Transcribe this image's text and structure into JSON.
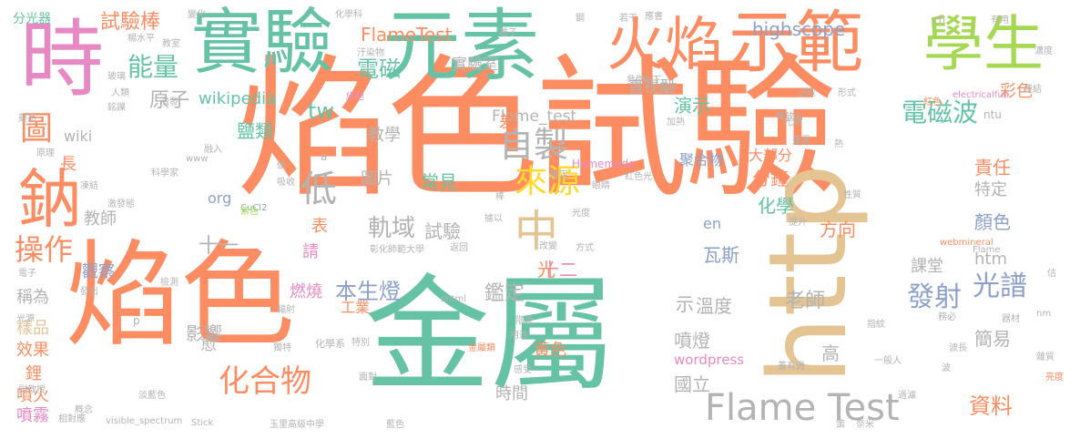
{
  "colors": {
    "orange": "#fc8d62",
    "teal": "#66c2a5",
    "blue": "#8da0cb",
    "pink": "#e78ac3",
    "lime": "#a6d854",
    "yellow": "#ffd92f",
    "tan": "#e5c494",
    "gray": "#b3b3b3"
  },
  "words": [
    "焰色試驗",
    "焰色",
    "金屬",
    "http",
    "元素",
    "實驗",
    "火焰",
    "示範",
    "時",
    "學生",
    "鈉",
    "Flame Test",
    "自製",
    "來源",
    "中",
    "低",
    "操作",
    "圖",
    "光譜",
    "發射",
    "化合物",
    "電磁波",
    "FlameTest",
    "highscope",
    "能量",
    "電磁",
    "試驗棒",
    "wikipedia",
    "原子",
    "tw",
    "實驗室",
    "Flame_test",
    "直視型",
    "演示",
    "分鐘",
    "化學",
    "顏色",
    "責任",
    "特定",
    "大部分",
    "聚合物",
    "常見",
    "圖片",
    "軌域",
    "試驗",
    "十一",
    "十二",
    "本生燈",
    "鑑定",
    "瓦斯",
    "方向",
    "老師",
    "溫度",
    "噴燈",
    "國立",
    "簡易",
    "資料",
    "彩色",
    "htm",
    "課堂",
    "影響",
    "燃燒",
    "請",
    "表",
    "鹽類",
    "教學",
    "教師",
    "觀察",
    "稱為",
    "樣品",
    "效果",
    "鋰",
    "噴火",
    "噴霧",
    "長",
    "wiki",
    "差",
    "愈",
    "示",
    "光",
    "高",
    "黃色",
    "時間",
    "工業",
    "org",
    "en",
    "wordpress",
    "Homemade",
    "分光器",
    "ntu",
    "ch",
    "electricalfun",
    "webmineral",
    "visible_spectrum",
    "shtml",
    "CuCl2",
    "玉里高級中學",
    "彰化師範大學",
    "化學系",
    "化學科",
    "科學家",
    "金屬類",
    "紅色光",
    "紅色",
    "藍色",
    "紫色",
    "綠色",
    "淡藍色",
    "光源",
    "光度",
    "光焰",
    "電子",
    "階差",
    "輻射",
    "獨特",
    "方式",
    "提升",
    "亮度",
    "釋放出",
    "改變",
    "加熱",
    "概念",
    "相對應",
    "www",
    "Stick",
    "Flame",
    "a",
    "p",
    "楊水平",
    "玻璃",
    "人類",
    "銘鑠",
    "藥品",
    "原理",
    "激發",
    "激發態",
    "凍結",
    "教室",
    "變化",
    "汙染物",
    "沾取",
    "形式",
    "器材",
    "用途",
    "雜質",
    "濃度",
    "若干",
    "應書",
    "連結",
    "有用",
    "畫里",
    "檢測",
    "發出",
    "過濾",
    "指紋",
    "一般人",
    "蓋有過",
    "棒",
    "眼睛",
    "務必",
    "副教授",
    "中下",
    "非",
    "做",
    "吸收",
    "性質",
    "熱",
    "nm",
    "奈米",
    "策",
    "波長",
    "波",
    "返回",
    "提示",
    "特別",
    "面對",
    "感受",
    "離子",
    "鋼",
    "參閱",
    "融入",
    "據以",
    "估",
    "確定"
  ]
}
